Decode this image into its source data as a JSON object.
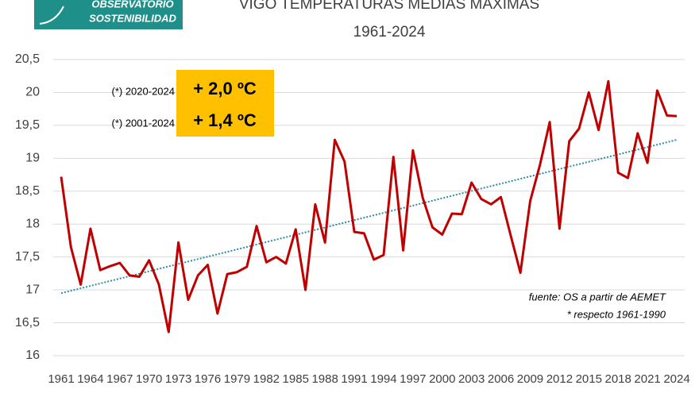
{
  "logo": [
    "OBSERVATORIO",
    "SOSTENIBILIDAD"
  ],
  "chart_data": {
    "type": "line",
    "title": "VIGO TEMPERATURAS MEDIAS MAXIMAS",
    "subtitle": "1961-2024",
    "x": [
      1961,
      1962,
      1963,
      1964,
      1965,
      1966,
      1967,
      1968,
      1969,
      1970,
      1971,
      1972,
      1973,
      1974,
      1975,
      1976,
      1977,
      1978,
      1979,
      1980,
      1981,
      1982,
      1983,
      1984,
      1985,
      1986,
      1987,
      1988,
      1989,
      1990,
      1991,
      1992,
      1993,
      1994,
      1995,
      1996,
      1997,
      1998,
      1999,
      2000,
      2001,
      2002,
      2003,
      2004,
      2005,
      2006,
      2007,
      2008,
      2009,
      2010,
      2011,
      2012,
      2013,
      2014,
      2015,
      2016,
      2017,
      2018,
      2019,
      2020,
      2021,
      2022,
      2023,
      2024
    ],
    "series": [
      {
        "color": "#c00000",
        "values": [
          18.72,
          17.65,
          17.08,
          17.93,
          17.3,
          17.36,
          17.41,
          17.22,
          17.2,
          17.45,
          17.08,
          16.36,
          17.72,
          16.85,
          17.22,
          17.38,
          16.64,
          17.24,
          17.27,
          17.35,
          17.97,
          17.42,
          17.5,
          17.4,
          17.92,
          17.0,
          18.3,
          17.72,
          19.28,
          18.95,
          17.88,
          17.86,
          17.46,
          17.53,
          19.02,
          17.6,
          19.12,
          18.4,
          17.95,
          17.84,
          18.16,
          18.15,
          18.63,
          18.38,
          18.3,
          18.41,
          17.83,
          17.26,
          18.35,
          18.9,
          19.55,
          17.93,
          19.26,
          19.45,
          20.0,
          19.43,
          20.17,
          18.78,
          18.7,
          19.38,
          18.93,
          20.03,
          19.65,
          19.64
        ]
      }
    ],
    "trendline": {
      "x": [
        1961,
        2024
      ],
      "values": [
        16.95,
        19.28
      ],
      "color": "#2e8ba6"
    },
    "xlim": [
      1961,
      2024
    ],
    "xticks": [
      1961,
      1964,
      1967,
      1970,
      1973,
      1976,
      1979,
      1982,
      1985,
      1988,
      1991,
      1994,
      1997,
      2000,
      2003,
      2006,
      2009,
      2012,
      2015,
      2018,
      2021,
      2024
    ],
    "ylim": [
      16,
      20.5
    ],
    "yticks": [
      16,
      {
        "value": 16.5,
        "label": "16,5"
      },
      17,
      {
        "value": 17.5,
        "label": "17,5"
      },
      18,
      {
        "value": 18.5,
        "label": "18,5"
      },
      19,
      {
        "value": 19.5,
        "label": "19,5"
      },
      20,
      {
        "value": 20.5,
        "label": "20,5"
      }
    ],
    "grid": true,
    "annotations": [
      {
        "label": "(*) 2020-2024",
        "value_text": "+ 2,0 ºC"
      },
      {
        "label": "(*) 2001-2024",
        "value_text": "+ 1,4 ºC"
      }
    ],
    "source": [
      "fuente: OS a partir de AEMET",
      "* respecto 1961-1990"
    ]
  }
}
